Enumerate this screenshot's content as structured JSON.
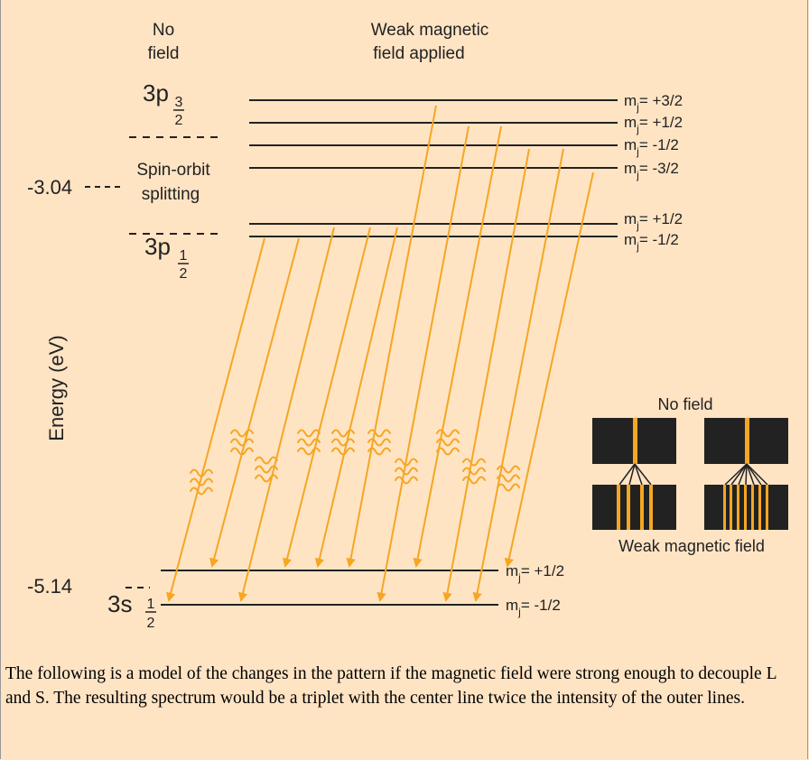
{
  "headers": {
    "no_field_line1": "No",
    "no_field_line2": "field",
    "weak_line1": "Weak magnetic",
    "weak_line2": "field applied"
  },
  "axis": {
    "ylabel": "Energy (eV)",
    "tick_upper": "-3.04",
    "tick_lower": "-5.14"
  },
  "states": {
    "p32_main": "3p",
    "p32_sub": "3",
    "p32_den": "2",
    "p12_main": "3p",
    "p12_sub": "1",
    "p12_den": "2",
    "s12_main": "3s",
    "s12_sub": "1",
    "s12_den": "2",
    "spin_orbit_line1": "Spin-orbit",
    "spin_orbit_line2": "splitting"
  },
  "levels": {
    "p32": [
      "m",
      "= +3/2",
      "= +1/2",
      "= -1/2",
      "= -3/2"
    ],
    "p12": [
      "= +1/2",
      "= -1/2"
    ],
    "s12": [
      "= +1/2",
      "= -1/2"
    ],
    "m_symbol": "m",
    "j_symbol": "j"
  },
  "inset": {
    "title_top": "No field",
    "title_bottom": "Weak magnetic field"
  },
  "caption": "The following is a model of the changes in the pattern if the magnetic field were strong enough to decouple L and S. The resulting spectrum would be a triplet with the center line twice the intensity of the outer lines.",
  "colors": {
    "background": "#ffe4c4",
    "arrow": "#f5a623",
    "line": "#222222",
    "inset_box": "#222222"
  }
}
